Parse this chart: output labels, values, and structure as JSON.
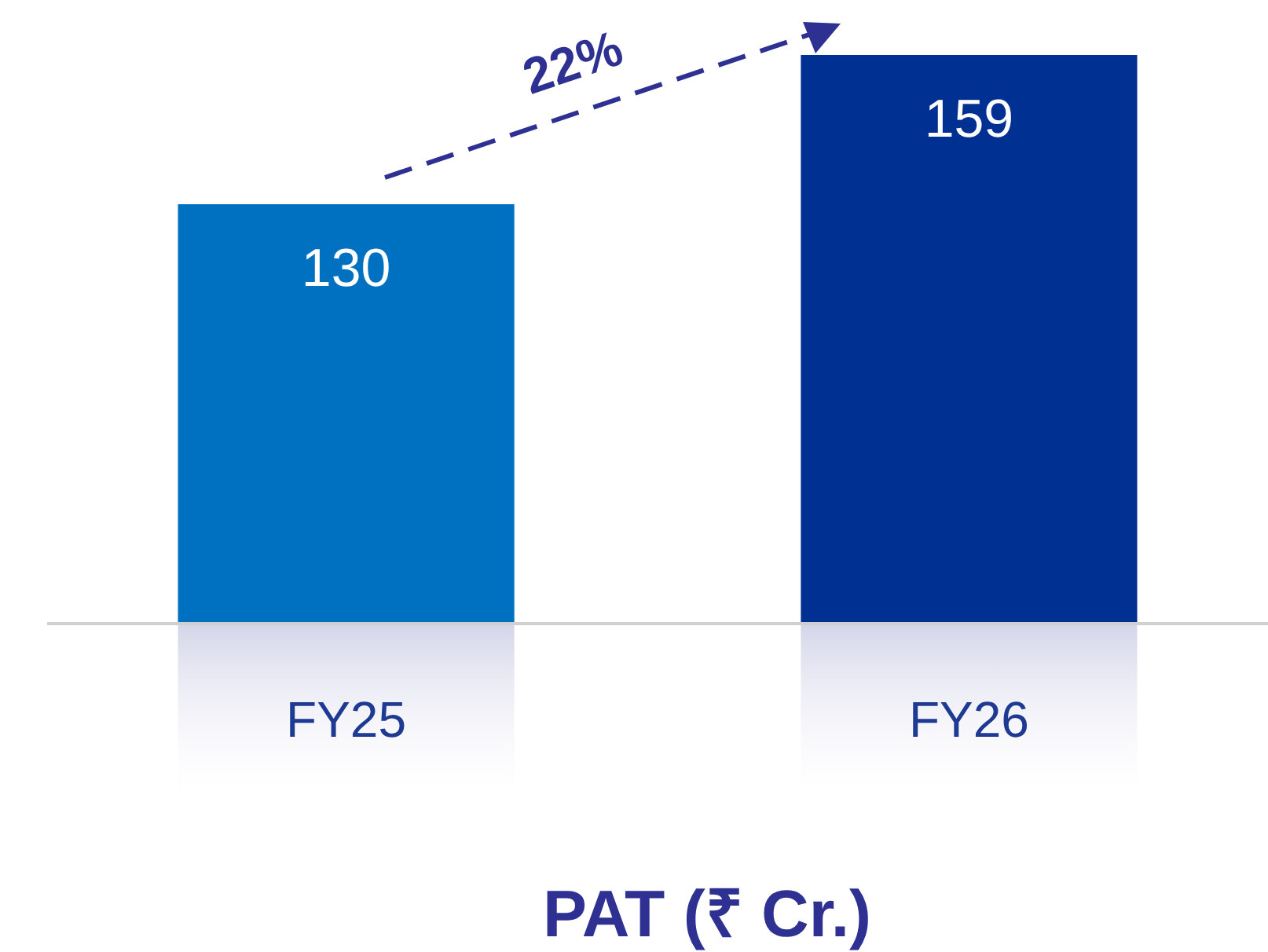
{
  "chart_data": {
    "type": "bar",
    "xlabel": "PAT (₹ Cr.)",
    "categories": [
      "FY25",
      "FY26"
    ],
    "values": [
      130,
      159
    ],
    "colors": [
      "#0070c0",
      "#003091"
    ],
    "ylim": [
      48.5,
      159
    ],
    "data_labels": true,
    "annotations": [
      "22%"
    ]
  }
}
